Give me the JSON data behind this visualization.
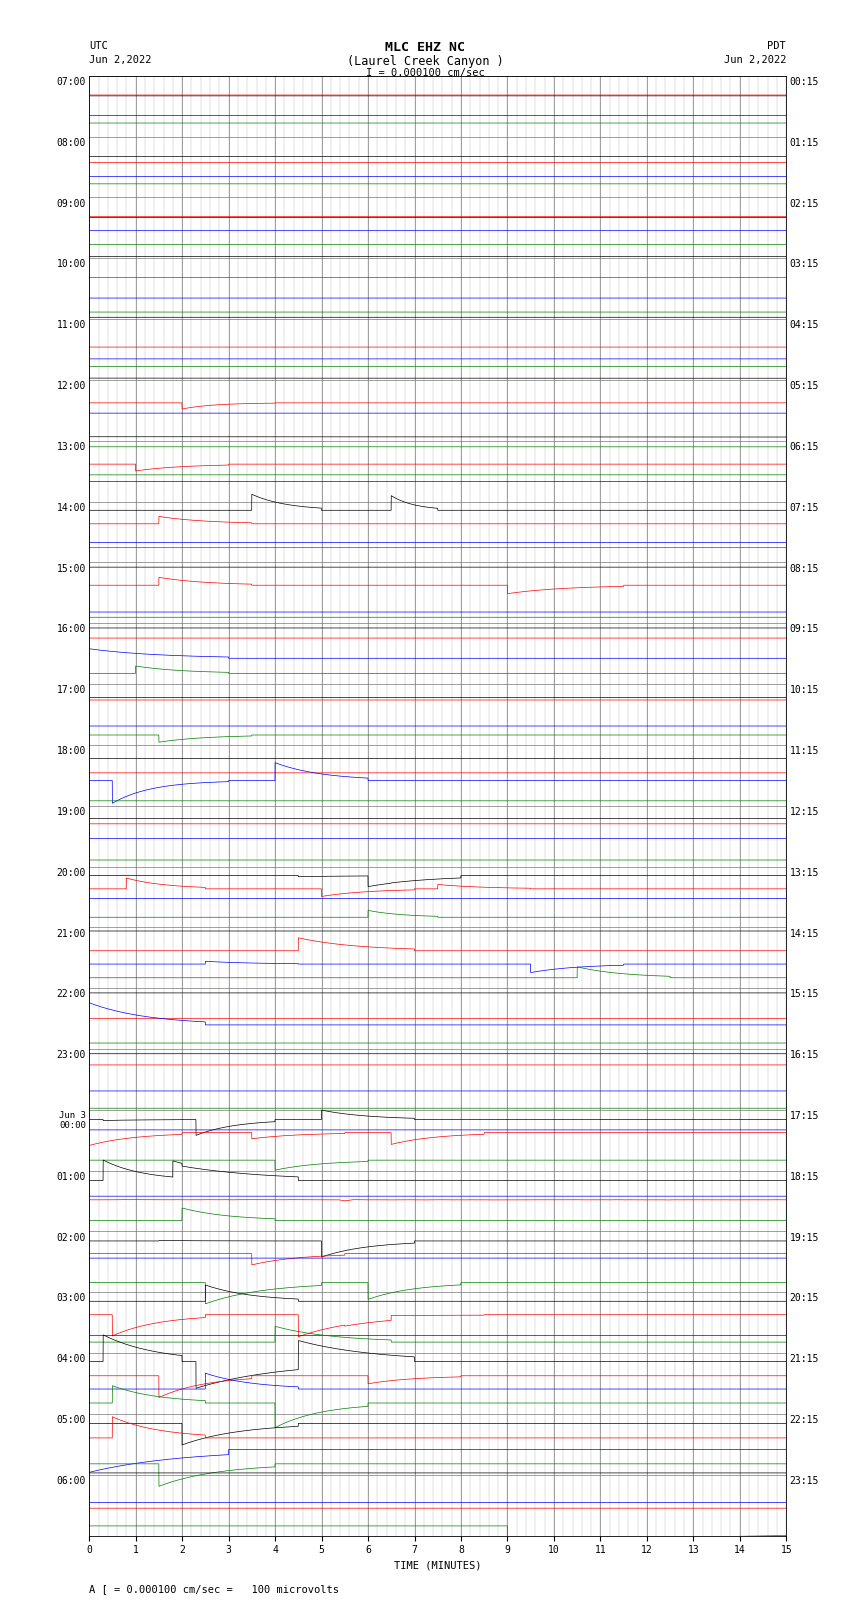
{
  "title_line1": "MLC EHZ NC",
  "title_line2": "(Laurel Creek Canyon )",
  "scale_label": "I = 0.000100 cm/sec",
  "utc_label": "UTC",
  "utc_date": "Jun 2,2022",
  "pdt_label": "PDT",
  "pdt_date": "Jun 2,2022",
  "xlabel": "TIME (MINUTES)",
  "footer_label": "A [ = 0.000100 cm/sec =   100 microvolts",
  "xlim": [
    0,
    15
  ],
  "xticks": [
    0,
    1,
    2,
    3,
    4,
    5,
    6,
    7,
    8,
    9,
    10,
    11,
    12,
    13,
    14,
    15
  ],
  "bg_color": "#ffffff",
  "grid_color": "#999999",
  "grid_color_minor": "#cccccc",
  "left_times": [
    "07:00",
    "08:00",
    "09:00",
    "10:00",
    "11:00",
    "12:00",
    "13:00",
    "14:00",
    "15:00",
    "16:00",
    "17:00",
    "18:00",
    "19:00",
    "20:00",
    "21:00",
    "22:00",
    "23:00",
    "Jun 3\n00:00",
    "01:00",
    "02:00",
    "03:00",
    "04:00",
    "05:00",
    "06:00"
  ],
  "right_times": [
    "00:15",
    "01:15",
    "02:15",
    "03:15",
    "04:15",
    "05:15",
    "06:15",
    "07:15",
    "08:15",
    "09:15",
    "10:15",
    "11:15",
    "12:15",
    "13:15",
    "14:15",
    "15:15",
    "16:15",
    "17:15",
    "18:15",
    "19:15",
    "20:15",
    "21:15",
    "22:15",
    "23:15"
  ],
  "num_rows": 24,
  "subrows": 4,
  "fig_width": 8.5,
  "fig_height": 16.13,
  "dpi": 100,
  "title_fontsize": 9,
  "label_fontsize": 7.5,
  "tick_fontsize": 7,
  "row_label_fontsize": 7
}
